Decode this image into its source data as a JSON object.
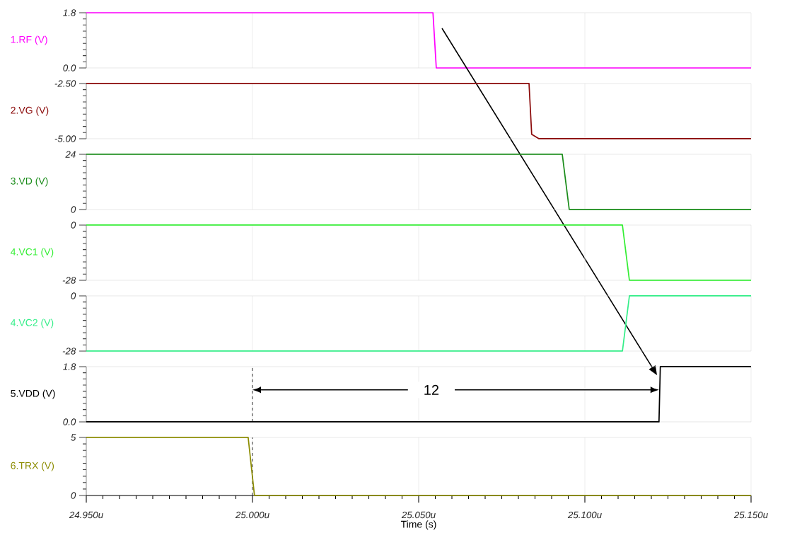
{
  "chart_data": [
    {
      "type": "line",
      "ylabel": "1.RF (V)",
      "xlim": [
        24.95,
        25.15
      ],
      "xticks": [
        {
          "value": 24.95,
          "label": null
        },
        {
          "value": 25.0,
          "label": null
        },
        {
          "value": 25.05,
          "label": null
        },
        {
          "value": 25.1,
          "label": null
        },
        {
          "value": 25.15,
          "label": null
        }
      ],
      "ylim": [
        0,
        1.8
      ],
      "yticks": [
        {
          "value": 0,
          "label": "0.0"
        },
        1.8
      ],
      "grid": "x",
      "tick_labels": "y",
      "x": [
        24.95,
        25.0543,
        25.0553,
        25.15
      ],
      "series": [
        {
          "color": "#ff00ff",
          "values": [
            1.8,
            1.8,
            0,
            0
          ]
        }
      ]
    },
    {
      "type": "line",
      "ylabel": "2.VG (V)",
      "xlim": [
        24.95,
        25.15
      ],
      "xticks": [
        {
          "value": 24.95,
          "label": null
        },
        {
          "value": 25.0,
          "label": null
        },
        {
          "value": 25.05,
          "label": null
        },
        {
          "value": 25.1,
          "label": null
        },
        {
          "value": 25.15,
          "label": null
        }
      ],
      "ylim": [
        -5,
        -2.5
      ],
      "yticks": [
        {
          "value": -5,
          "label": "-5.00"
        },
        {
          "value": -2.5,
          "label": "-2.50"
        }
      ],
      "grid": "x",
      "tick_labels": "y",
      "x": [
        24.95,
        25.0832,
        25.084,
        25.0862,
        25.15
      ],
      "series": [
        {
          "color": "#8b0a0a",
          "values": [
            -2.5,
            -2.5,
            -4.8,
            -5,
            -5
          ]
        }
      ]
    },
    {
      "type": "line",
      "ylabel": "3.VD (V)",
      "xlim": [
        24.95,
        25.15
      ],
      "xticks": [
        {
          "value": 24.95,
          "label": null
        },
        {
          "value": 25.0,
          "label": null
        },
        {
          "value": 25.05,
          "label": null
        },
        {
          "value": 25.1,
          "label": null
        },
        {
          "value": 25.15,
          "label": null
        }
      ],
      "ylim": [
        0,
        24
      ],
      "yticks": [
        0,
        24
      ],
      "grid": "x",
      "tick_labels": "y",
      "x": [
        24.95,
        25.0932,
        25.0953,
        25.15
      ],
      "series": [
        {
          "color": "#1a8c1a",
          "values": [
            24,
            24,
            0,
            0
          ]
        }
      ]
    },
    {
      "type": "line",
      "ylabel": "4.VC1 (V)",
      "xlim": [
        24.95,
        25.15
      ],
      "xticks": [
        {
          "value": 24.95,
          "label": null
        },
        {
          "value": 25.0,
          "label": null
        },
        {
          "value": 25.05,
          "label": null
        },
        {
          "value": 25.1,
          "label": null
        },
        {
          "value": 25.15,
          "label": null
        }
      ],
      "ylim": [
        -28,
        0
      ],
      "yticks": [
        -28,
        0
      ],
      "grid": "x",
      "tick_labels": "y",
      "x": [
        24.95,
        25.1113,
        25.1134,
        25.15
      ],
      "series": [
        {
          "color": "#33ee33",
          "values": [
            0,
            0,
            -28,
            -28
          ]
        }
      ]
    },
    {
      "type": "line",
      "ylabel": "4.VC2 (V)",
      "xlim": [
        24.95,
        25.15
      ],
      "xticks": [
        {
          "value": 24.95,
          "label": null
        },
        {
          "value": 25.0,
          "label": null
        },
        {
          "value": 25.05,
          "label": null
        },
        {
          "value": 25.1,
          "label": null
        },
        {
          "value": 25.15,
          "label": null
        }
      ],
      "ylim": [
        -28,
        0
      ],
      "yticks": [
        -28,
        0
      ],
      "grid": "x",
      "tick_labels": "y",
      "x": [
        24.95,
        25.1113,
        25.1134,
        25.15
      ],
      "series": [
        {
          "color": "#33ee88",
          "values": [
            -28,
            -28,
            0,
            0
          ]
        }
      ]
    },
    {
      "type": "line",
      "ylabel": "5.VDD (V)",
      "xlim": [
        24.95,
        25.15
      ],
      "xticks": [
        {
          "value": 24.95,
          "label": null
        },
        {
          "value": 25.0,
          "label": null
        },
        {
          "value": 25.05,
          "label": null
        },
        {
          "value": 25.1,
          "label": null
        },
        {
          "value": 25.15,
          "label": null
        }
      ],
      "ylim": [
        0,
        1.8
      ],
      "yticks": [
        {
          "value": 0,
          "label": "0.0"
        },
        1.8
      ],
      "grid": "x",
      "tick_labels": "y",
      "x": [
        24.95,
        25.1223,
        25.1227,
        25.15
      ],
      "series": [
        {
          "color": "#000000",
          "values": [
            0,
            0,
            1.8,
            1.8
          ]
        }
      ],
      "ref_lines": [
        {
          "axis": "x",
          "value": 25.0,
          "color": "#000000",
          "line_style": "dashed"
        }
      ],
      "annotations": [
        "12"
      ]
    },
    {
      "type": "line",
      "ylabel": "6.TRX (V)",
      "xlabel": "Time (s)",
      "xlim": [
        24.95,
        25.15
      ],
      "xticks": [
        {
          "value": 24.95,
          "label": "24.950u"
        },
        {
          "value": 25.0,
          "label": "25.000u"
        },
        {
          "value": 25.05,
          "label": "25.050u"
        },
        {
          "value": 25.1,
          "label": "25.100u"
        },
        {
          "value": 25.15,
          "label": "25.150u"
        }
      ],
      "ylim": [
        0,
        5
      ],
      "yticks": [
        0,
        5
      ],
      "grid": "x",
      "x": [
        24.95,
        24.9987,
        25.0006,
        25.15
      ],
      "series": [
        {
          "color": "#8c8c00",
          "values": [
            5,
            5,
            0,
            0
          ]
        }
      ],
      "ref_lines": [
        {
          "axis": "x",
          "value": 25.0,
          "color": "#000000",
          "line_style": "dashed"
        }
      ]
    }
  ]
}
